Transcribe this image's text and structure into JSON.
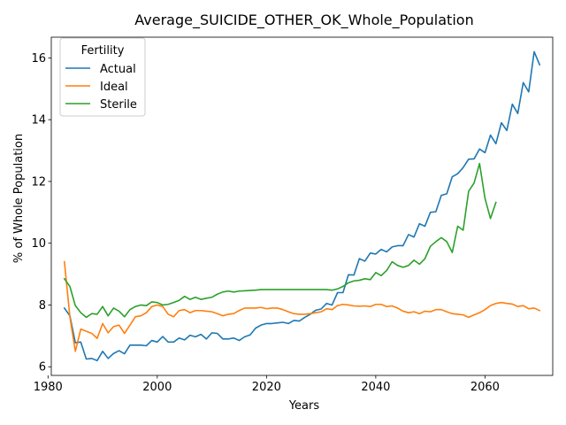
{
  "chart_data": {
    "type": "line",
    "title": "Average_SUICIDE_OTHER_OK_Whole_Population",
    "xlabel": "Years",
    "ylabel": "% of Whole Population",
    "xlim": [
      1980.6,
      2072.4
    ],
    "ylim": [
      5.72,
      16.67
    ],
    "xticks": [
      1980,
      2000,
      2020,
      2040,
      2060
    ],
    "yticks": [
      6,
      8,
      10,
      12,
      14,
      16
    ],
    "grid": false,
    "legend": {
      "title": "Fertility",
      "placement": "top-left"
    },
    "series": [
      {
        "name": "Actual",
        "color": "#1f77b4",
        "x": [
          1983,
          1984,
          1985,
          1986,
          1987,
          1988,
          1989,
          1990,
          1991,
          1992,
          1993,
          1994,
          1995,
          1996,
          1997,
          1998,
          1999,
          2000,
          2001,
          2002,
          2003,
          2004,
          2005,
          2006,
          2007,
          2008,
          2009,
          2010,
          2011,
          2012,
          2013,
          2014,
          2015,
          2016,
          2017,
          2018,
          2019,
          2020,
          2021,
          2022,
          2023,
          2024,
          2025,
          2026,
          2027,
          2028,
          2029,
          2030,
          2031,
          2032,
          2033,
          2034,
          2035,
          2036,
          2037,
          2038,
          2039,
          2040,
          2041,
          2042,
          2043,
          2044,
          2045,
          2046,
          2047,
          2048,
          2049,
          2050,
          2051,
          2052,
          2053,
          2054,
          2055,
          2056,
          2057,
          2058,
          2059,
          2060,
          2061,
          2062,
          2063,
          2064,
          2065,
          2066,
          2067,
          2068,
          2069,
          2070
        ],
        "values": [
          7.9,
          7.65,
          6.78,
          6.8,
          6.25,
          6.27,
          6.2,
          6.5,
          6.27,
          6.43,
          6.52,
          6.42,
          6.7,
          6.7,
          6.7,
          6.68,
          6.85,
          6.8,
          6.98,
          6.8,
          6.8,
          6.93,
          6.87,
          7.02,
          6.97,
          7.05,
          6.9,
          7.1,
          7.08,
          6.9,
          6.9,
          6.93,
          6.85,
          6.97,
          7.03,
          7.25,
          7.35,
          7.4,
          7.4,
          7.42,
          7.44,
          7.4,
          7.5,
          7.48,
          7.6,
          7.7,
          7.83,
          7.87,
          8.05,
          8.0,
          8.4,
          8.4,
          8.98,
          8.97,
          9.5,
          9.42,
          9.68,
          9.65,
          9.8,
          9.72,
          9.88,
          9.92,
          9.92,
          10.28,
          10.2,
          10.63,
          10.55,
          11.0,
          11.02,
          11.55,
          11.6,
          12.15,
          12.25,
          12.45,
          12.72,
          12.73,
          13.05,
          12.93,
          13.5,
          13.22,
          13.9,
          13.65,
          14.5,
          14.2,
          15.2,
          14.9,
          16.2,
          15.78
        ]
      },
      {
        "name": "Ideal",
        "color": "#ff7f0e",
        "x": [
          1983,
          1984,
          1985,
          1986,
          1987,
          1988,
          1989,
          1990,
          1991,
          1992,
          1993,
          1994,
          1995,
          1996,
          1997,
          1998,
          1999,
          2000,
          2001,
          2002,
          2003,
          2004,
          2005,
          2006,
          2007,
          2008,
          2009,
          2010,
          2011,
          2012,
          2013,
          2014,
          2015,
          2016,
          2017,
          2018,
          2019,
          2020,
          2021,
          2022,
          2023,
          2024,
          2025,
          2026,
          2027,
          2028,
          2029,
          2030,
          2031,
          2032,
          2033,
          2034,
          2035,
          2036,
          2037,
          2038,
          2039,
          2040,
          2041,
          2042,
          2043,
          2044,
          2045,
          2046,
          2047,
          2048,
          2049,
          2050,
          2051,
          2052,
          2053,
          2054,
          2055,
          2056,
          2057,
          2058,
          2059,
          2060,
          2061,
          2062,
          2063,
          2064,
          2065,
          2066,
          2067,
          2068,
          2069,
          2070
        ],
        "values": [
          9.4,
          7.62,
          6.5,
          7.22,
          7.15,
          7.08,
          6.92,
          7.4,
          7.1,
          7.3,
          7.35,
          7.08,
          7.35,
          7.62,
          7.65,
          7.75,
          7.95,
          8.0,
          7.95,
          7.7,
          7.62,
          7.82,
          7.85,
          7.75,
          7.82,
          7.82,
          7.8,
          7.78,
          7.72,
          7.65,
          7.7,
          7.72,
          7.82,
          7.9,
          7.9,
          7.9,
          7.92,
          7.88,
          7.9,
          7.9,
          7.85,
          7.78,
          7.72,
          7.7,
          7.7,
          7.72,
          7.75,
          7.78,
          7.88,
          7.85,
          7.98,
          8.02,
          8.0,
          7.97,
          7.96,
          7.97,
          7.95,
          8.02,
          8.02,
          7.95,
          7.97,
          7.9,
          7.8,
          7.75,
          7.78,
          7.72,
          7.8,
          7.78,
          7.85,
          7.85,
          7.78,
          7.72,
          7.7,
          7.68,
          7.6,
          7.68,
          7.75,
          7.85,
          7.98,
          8.05,
          8.08,
          8.05,
          8.03,
          7.95,
          7.98,
          7.88,
          7.9,
          7.82
        ]
      },
      {
        "name": "Sterile",
        "color": "#2ca02c",
        "x": [
          1983,
          1984,
          1985,
          1986,
          1987,
          1988,
          1989,
          1990,
          1991,
          1992,
          1993,
          1994,
          1995,
          1996,
          1997,
          1998,
          1999,
          2000,
          2001,
          2002,
          2003,
          2004,
          2005,
          2006,
          2007,
          2008,
          2009,
          2010,
          2011,
          2012,
          2013,
          2014,
          2015,
          2016,
          2017,
          2018,
          2019,
          2020,
          2021,
          2022,
          2023,
          2024,
          2025,
          2026,
          2027,
          2028,
          2029,
          2030,
          2031,
          2032,
          2033,
          2034,
          2035,
          2036,
          2037,
          2038,
          2039,
          2040,
          2041,
          2042,
          2043,
          2044,
          2045,
          2046,
          2047,
          2048,
          2049,
          2050,
          2051,
          2052,
          2053,
          2054,
          2055,
          2056,
          2057,
          2058,
          2059,
          2060,
          2061,
          2062
        ],
        "values": [
          8.85,
          8.6,
          7.98,
          7.75,
          7.6,
          7.72,
          7.7,
          7.95,
          7.65,
          7.9,
          7.8,
          7.62,
          7.85,
          7.95,
          8.0,
          7.98,
          8.1,
          8.08,
          8.0,
          8.02,
          8.08,
          8.15,
          8.28,
          8.18,
          8.25,
          8.18,
          8.22,
          8.25,
          8.35,
          8.42,
          8.45,
          8.42,
          8.45,
          8.46,
          8.47,
          8.48,
          8.5,
          8.5,
          8.5,
          8.5,
          8.5,
          8.5,
          8.5,
          8.5,
          8.5,
          8.5,
          8.5,
          8.5,
          8.5,
          8.48,
          8.52,
          8.6,
          8.72,
          8.78,
          8.8,
          8.85,
          8.82,
          9.05,
          8.95,
          9.12,
          9.4,
          9.28,
          9.22,
          9.28,
          9.45,
          9.32,
          9.5,
          9.9,
          10.05,
          10.18,
          10.05,
          9.7,
          10.55,
          10.42,
          11.68,
          11.95,
          12.58,
          11.45,
          10.8,
          11.32
        ]
      }
    ]
  }
}
